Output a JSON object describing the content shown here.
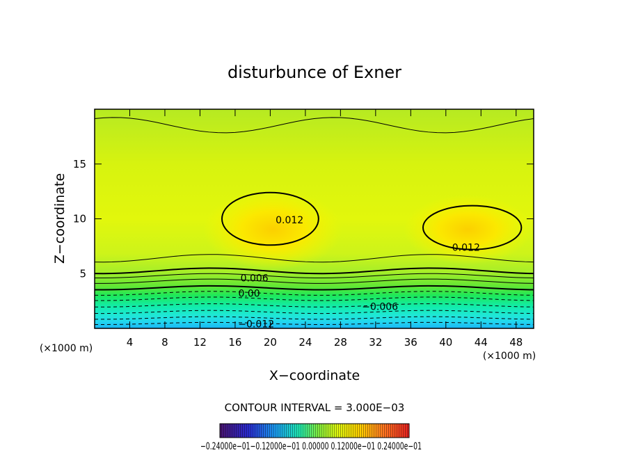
{
  "chart_data": {
    "type": "heatmap",
    "title": "disturbunce of Exner",
    "xlabel": "X−coordinate",
    "ylabel": "Z−coordinate",
    "x_unit": "(×1000 m)",
    "xlim": [
      0,
      50
    ],
    "ylim": [
      0,
      20
    ],
    "x_ticks": [
      "4",
      "8",
      "12",
      "16",
      "20",
      "24",
      "28",
      "32",
      "36",
      "40",
      "44",
      "48"
    ],
    "y_ticks": [
      "5",
      "10",
      "15"
    ],
    "contour_interval_text": "CONTOUR INTERVAL = 3.000E−03",
    "contour_labels": [
      {
        "text": "0.012",
        "x": 22.2,
        "z": 9.9
      },
      {
        "text": "0.012",
        "x": 42.3,
        "z": 7.4
      },
      {
        "text": "0.006",
        "x": 18.2,
        "z": 4.6
      },
      {
        "text": "0.00",
        "x": 17.6,
        "z": 3.2
      },
      {
        "text": "−0.006",
        "x": 32.5,
        "z": 2.0
      },
      {
        "text": "−0.012",
        "x": 18.4,
        "z": 0.4
      }
    ],
    "colorbar_labels_text": "−0.24000e−01−0.12000e−01 0.00000 0.12000e−01 0.24000e−01",
    "colorbar_range": [
      -0.024,
      0.024
    ],
    "colors": {
      "frame": "#000000",
      "line": "#000000"
    }
  }
}
